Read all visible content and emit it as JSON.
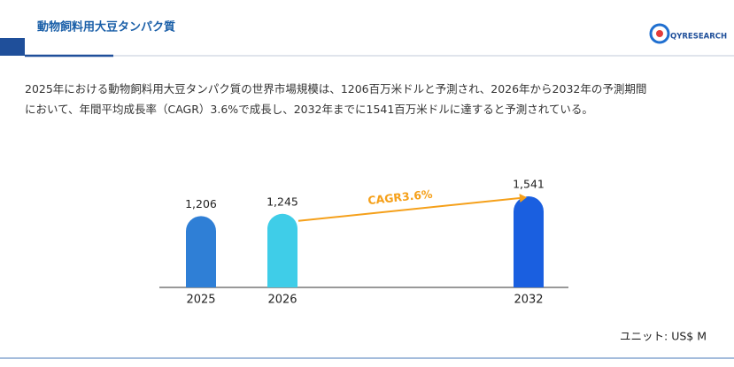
{
  "header": {
    "title": "動物飼料用大豆タンパク質",
    "logo": "QYRESEARCH"
  },
  "description": [
    "2025年における動物飼料用大豆タンパク質の世界市場規模は、1206百万米ドルと予測され、2026年から2032年の予測期間",
    "において、年間平均成長率（CAGR）3.6%で成長し、2032年までに1541百万米ドルに達すると予測されている。"
  ],
  "chart_data": {
    "type": "bar",
    "categories": [
      "2025",
      "2026",
      "2032"
    ],
    "values": [
      1206,
      1245,
      1541
    ],
    "value_labels": [
      "1,206",
      "1,245",
      "1,541"
    ],
    "colors": [
      "#2f7fd6",
      "#3fcde8",
      "#1a5fe0"
    ],
    "annotation": "CAGR3.6%",
    "annotation_color": "#f5a01a",
    "unit_label": "ユニット: US$ M"
  }
}
